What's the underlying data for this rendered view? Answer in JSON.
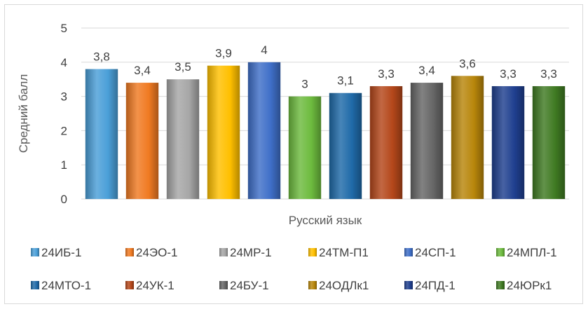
{
  "chart_data": {
    "type": "bar",
    "xlabel": "Русский язык",
    "ylabel": "Средний балл",
    "ylim": [
      0,
      5
    ],
    "yticks": [
      0,
      1,
      2,
      3,
      4,
      5
    ],
    "grid": true,
    "legend_position": "bottom",
    "series": [
      {
        "name": "24ИБ-1",
        "value": 3.8,
        "label": "3,8",
        "color": "#4a9fd8"
      },
      {
        "name": "24ЭО-1",
        "value": 3.4,
        "label": "3,4",
        "color": "#f07a22"
      },
      {
        "name": "24МР-1",
        "value": 3.5,
        "label": "3,5",
        "color": "#a6a6a6"
      },
      {
        "name": "24ТМ-П1",
        "value": 3.9,
        "label": "3,9",
        "color": "#ffc000"
      },
      {
        "name": "24СП-1",
        "value": 4,
        "label": "4",
        "color": "#3f6fc8"
      },
      {
        "name": "24МПЛ-1",
        "value": 3,
        "label": "3",
        "color": "#6dbb3e"
      },
      {
        "name": "24МТО-1",
        "value": 3.1,
        "label": "3,1",
        "color": "#1f6aa8"
      },
      {
        "name": "24УК-1",
        "value": 3.3,
        "label": "3,3",
        "color": "#b4471a"
      },
      {
        "name": "24БУ-1",
        "value": 3.4,
        "label": "3,4",
        "color": "#666666"
      },
      {
        "name": "24ОДЛк1",
        "value": 3.6,
        "label": "3,6",
        "color": "#b8860b"
      },
      {
        "name": "24ПД-1",
        "value": 3.3,
        "label": "3,3",
        "color": "#1f3f8f"
      },
      {
        "name": "24ЮРк1",
        "value": 3.3,
        "label": "3,3",
        "color": "#3f7a22"
      }
    ]
  }
}
